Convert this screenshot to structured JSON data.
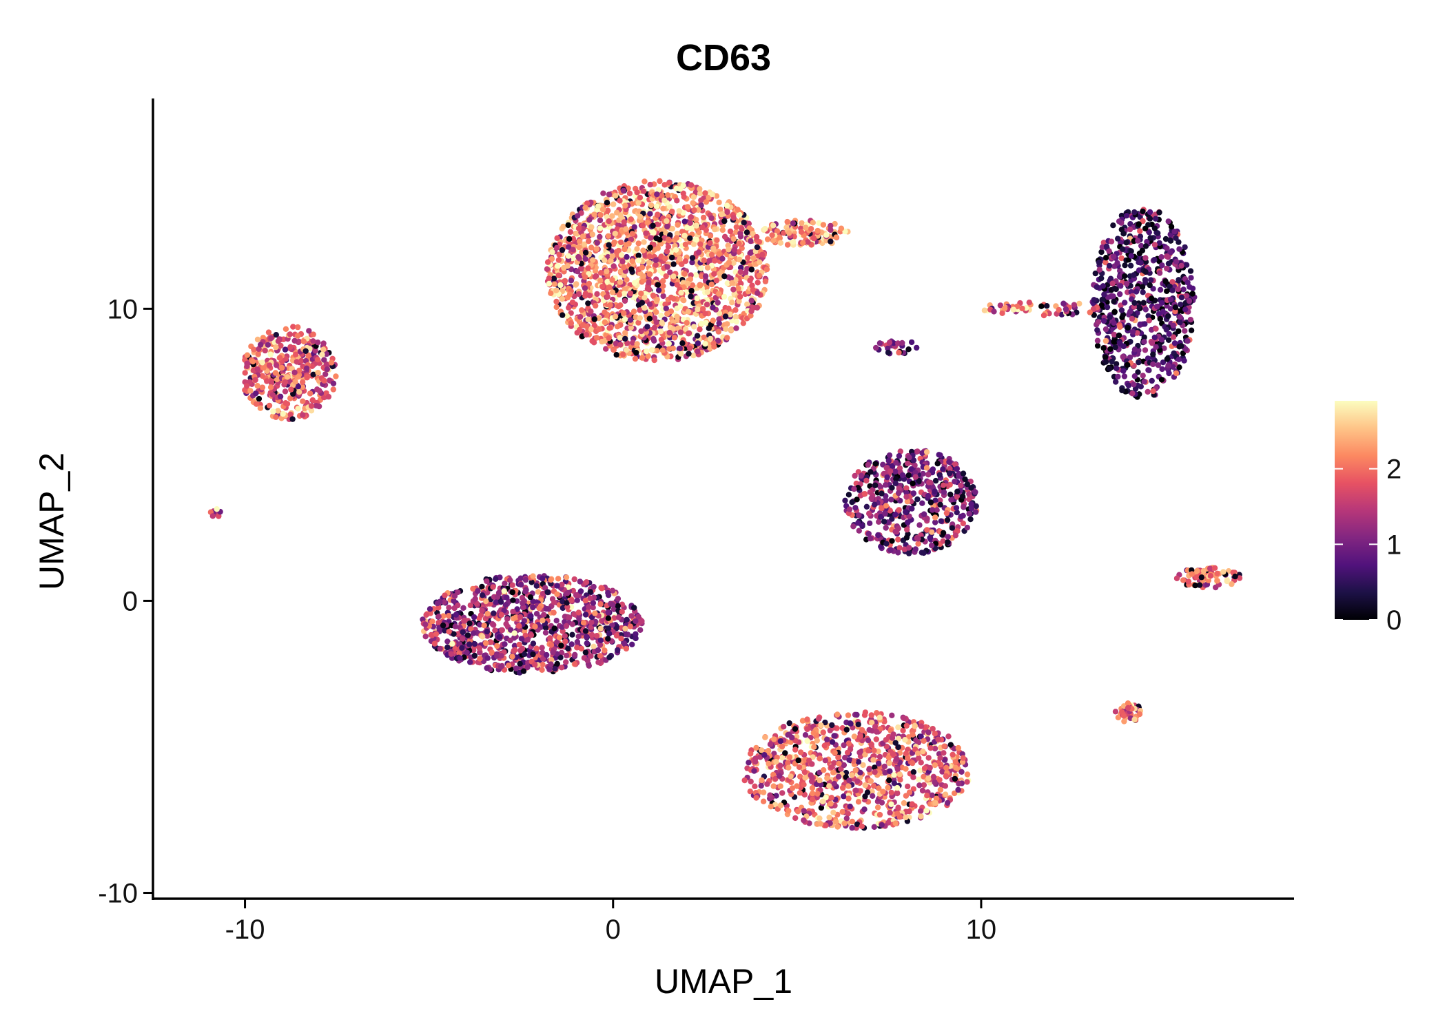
{
  "chart_data": {
    "type": "scatter",
    "title": "CD63",
    "xlabel": "UMAP_1",
    "ylabel": "UMAP_2",
    "xlim": [
      -12.5,
      18.5
    ],
    "ylim": [
      -10.2,
      17.2
    ],
    "x_ticks": [
      -10,
      0,
      10
    ],
    "y_ticks": [
      -10,
      0,
      10
    ],
    "x_tick_labels": [
      "-10",
      "0",
      "10"
    ],
    "y_tick_labels": [
      "-10",
      "0",
      "10"
    ],
    "color_scale": {
      "name": "magma",
      "range": [
        0,
        2.9
      ],
      "ticks": [
        0,
        1,
        2
      ],
      "tick_labels": [
        "0",
        "1",
        "2"
      ],
      "colors": [
        "#000004",
        "#1d1147",
        "#51127c",
        "#822681",
        "#b73779",
        "#e75263",
        "#fc8961",
        "#fec488",
        "#fcfdbf"
      ]
    },
    "clusters": [
      {
        "name": "top-center",
        "cx": 1.2,
        "cy": 11.3,
        "rx": 3.0,
        "ry": 3.1,
        "mean_expression": 2.1,
        "count": 1800
      },
      {
        "name": "top-center-arm",
        "cx": 5.2,
        "cy": 12.6,
        "rx": 1.2,
        "ry": 0.45,
        "mean_expression": 2.2,
        "count": 120
      },
      {
        "name": "top-right",
        "cx": 14.4,
        "cy": 10.2,
        "rx": 1.4,
        "ry": 3.3,
        "mean_expression": 0.7,
        "count": 700
      },
      {
        "name": "top-left",
        "cx": -8.8,
        "cy": 7.8,
        "rx": 1.3,
        "ry": 1.6,
        "mean_expression": 1.8,
        "count": 380
      },
      {
        "name": "middle-right",
        "cx": 8.1,
        "cy": 3.4,
        "rx": 1.8,
        "ry": 1.8,
        "mean_expression": 1.1,
        "count": 520
      },
      {
        "name": "middle-left",
        "cx": -2.2,
        "cy": -0.8,
        "rx": 3.0,
        "ry": 1.7,
        "mean_expression": 1.3,
        "count": 950
      },
      {
        "name": "bottom-center",
        "cx": 6.6,
        "cy": -5.8,
        "rx": 3.1,
        "ry": 2.0,
        "mean_expression": 1.8,
        "count": 900
      },
      {
        "name": "small-right",
        "cx": 16.2,
        "cy": 0.8,
        "rx": 0.9,
        "ry": 0.35,
        "mean_expression": 2.0,
        "count": 80
      },
      {
        "name": "tiny-bottom-right",
        "cx": 14.0,
        "cy": -3.8,
        "rx": 0.35,
        "ry": 0.35,
        "mean_expression": 2.1,
        "count": 40
      },
      {
        "name": "small-streak",
        "cx": 11.6,
        "cy": 10.0,
        "rx": 1.6,
        "ry": 0.25,
        "mean_expression": 2.0,
        "count": 60
      },
      {
        "name": "tiny-mid",
        "cx": 7.7,
        "cy": 8.7,
        "rx": 0.6,
        "ry": 0.25,
        "mean_expression": 1.0,
        "count": 25
      },
      {
        "name": "tiny-left",
        "cx": -10.8,
        "cy": 3.0,
        "rx": 0.15,
        "ry": 0.15,
        "mean_expression": 1.8,
        "count": 8
      }
    ]
  }
}
